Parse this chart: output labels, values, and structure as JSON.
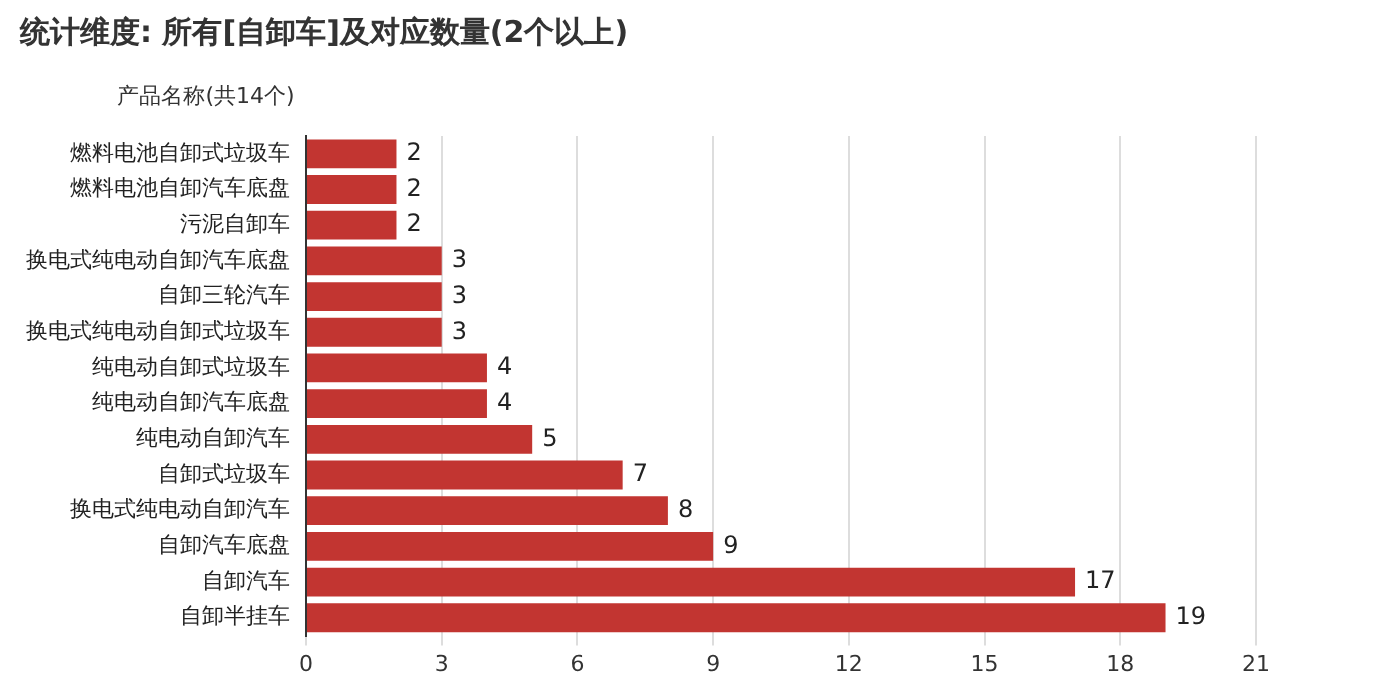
{
  "chart_data": {
    "type": "bar",
    "orientation": "horizontal",
    "title": "统计维度: 所有[自卸车]及对应数量(2个以上)",
    "ylabel": "产品名称(共14个)",
    "categories": [
      "燃料电池自卸式垃圾车",
      "燃料电池自卸汽车底盘",
      "污泥自卸车",
      "换电式纯电动自卸汽车底盘",
      "自卸三轮汽车",
      "换电式纯电动自卸式垃圾车",
      "纯电动自卸式垃圾车",
      "纯电动自卸汽车底盘",
      "纯电动自卸汽车",
      "自卸式垃圾车",
      "换电式纯电动自卸汽车",
      "自卸汽车底盘",
      "自卸汽车",
      "自卸半挂车"
    ],
    "values": [
      2,
      2,
      2,
      3,
      3,
      3,
      4,
      4,
      5,
      7,
      8,
      9,
      17,
      19
    ],
    "color": "#c23531",
    "xlim": [
      0,
      21
    ],
    "xticks": [
      0,
      3,
      6,
      9,
      12,
      15,
      18,
      21
    ],
    "grid": "x",
    "data_labels": true,
    "legend": false
  }
}
